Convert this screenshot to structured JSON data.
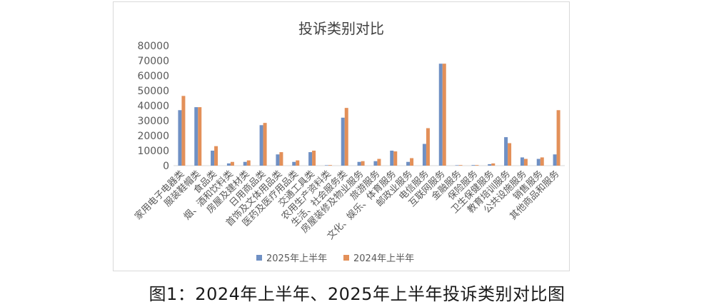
{
  "caption": "图1：2024年上半年、2025年上半年投诉类别对比图",
  "colors": {
    "s2025": "#6f90c4",
    "s2024": "#e39059",
    "grid": "#d9d9d9",
    "text": "#595959"
  },
  "chart_data": {
    "type": "bar",
    "title": "投诉类别对比",
    "xlabel": "",
    "ylabel": "",
    "ylim": [
      0,
      80000
    ],
    "yticks": [
      0,
      10000,
      20000,
      30000,
      40000,
      50000,
      60000,
      70000,
      80000
    ],
    "grid": false,
    "legend_position": "bottom",
    "categories": [
      "家用电子电器类",
      "服装鞋帽类",
      "食品类",
      "烟、酒和饮料类",
      "房屋及建材类",
      "日用商品类",
      "首饰及文体用品类",
      "医药及医疗用品类",
      "交通工具类",
      "农用生产资料类",
      "生活、社会服务类",
      "房屋装修及物业服务",
      "旅游服务",
      "文化、娱乐、体育服务",
      "邮政业服务",
      "电信服务",
      "互联网服务",
      "金融服务",
      "保险服务",
      "卫生保健服务",
      "教育培训服务",
      "公共设施服务",
      "销售服务",
      "其他商品和服务"
    ],
    "series": [
      {
        "name": "2025年上半年",
        "values": [
          37000,
          39000,
          10000,
          1500,
          2500,
          27000,
          7500,
          2500,
          9000,
          300,
          32000,
          2500,
          3000,
          10000,
          2500,
          14500,
          68000,
          300,
          400,
          1000,
          19000,
          5500,
          4500,
          7500
        ]
      },
      {
        "name": "2024年上半年",
        "values": [
          46500,
          39000,
          13000,
          2500,
          3500,
          28500,
          9000,
          3500,
          10000,
          400,
          38500,
          3000,
          4500,
          9500,
          5000,
          25000,
          68000,
          400,
          400,
          1500,
          15000,
          4500,
          5500,
          37000
        ]
      }
    ]
  }
}
